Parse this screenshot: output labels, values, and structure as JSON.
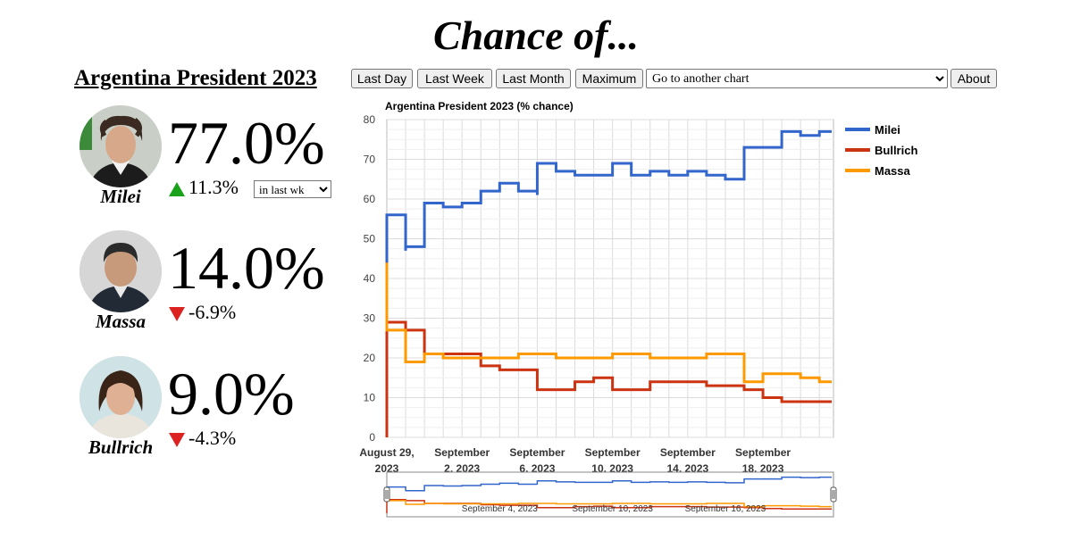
{
  "site": {
    "title": "Chance of..."
  },
  "page": {
    "title": "Argentina President 2023"
  },
  "toolbar": {
    "last_day": "Last Day",
    "last_week": "Last Week",
    "last_month": "Last Month",
    "maximum": "Maximum",
    "chart_select": "Go to another chart",
    "about": "About"
  },
  "candidates": [
    {
      "name": "Milei",
      "chance": "77.0%",
      "change": "11.3%",
      "direction": "up",
      "period": "in last wk"
    },
    {
      "name": "Massa",
      "chance": "14.0%",
      "change": "-6.9%",
      "direction": "down"
    },
    {
      "name": "Bullrich",
      "chance": "9.0%",
      "change": "-4.3%",
      "direction": "down"
    }
  ],
  "colors": {
    "up": "#1aa31a",
    "down": "#dd2222",
    "milei": "#3366cc",
    "bullrich": "#cc3311",
    "massa": "#ff9900"
  },
  "chart_data": {
    "type": "line",
    "title": "Argentina President 2023 (% chance)",
    "ylim": [
      0,
      80
    ],
    "yticks": [
      0,
      10,
      20,
      30,
      40,
      50,
      60,
      70,
      80
    ],
    "xlim": [
      "2023-08-29",
      "2023-09-21"
    ],
    "xticks": [
      {
        "date": "2023-08-29",
        "line1": "August 29,",
        "line2": "2023"
      },
      {
        "date": "2023-09-02",
        "line1": "September",
        "line2": "2, 2023"
      },
      {
        "date": "2023-09-06",
        "line1": "September",
        "line2": "6, 2023"
      },
      {
        "date": "2023-09-10",
        "line1": "September",
        "line2": "10, 2023"
      },
      {
        "date": "2023-09-14",
        "line1": "September",
        "line2": "14, 2023"
      },
      {
        "date": "2023-09-18",
        "line1": "September",
        "line2": "18, 2023"
      }
    ],
    "grid": true,
    "legend_position": "right",
    "series": [
      {
        "name": "Milei",
        "color": "#3366cc",
        "x": [
          "2023-08-29",
          "2023-08-29",
          "2023-08-30",
          "2023-08-30",
          "2023-08-31",
          "2023-09-01",
          "2023-09-02",
          "2023-09-03",
          "2023-09-04",
          "2023-09-05",
          "2023-09-06",
          "2023-09-06",
          "2023-09-07",
          "2023-09-08",
          "2023-09-09",
          "2023-09-10",
          "2023-09-11",
          "2023-09-12",
          "2023-09-13",
          "2023-09-14",
          "2023-09-15",
          "2023-09-16",
          "2023-09-17",
          "2023-09-18",
          "2023-09-19",
          "2023-09-20",
          "2023-09-21"
        ],
        "values": [
          42,
          56,
          47,
          48,
          59,
          58,
          59,
          62,
          64,
          62,
          61,
          69,
          67,
          66,
          66,
          69,
          66,
          67,
          66,
          67,
          66,
          65,
          73,
          73,
          77,
          76,
          77
        ]
      },
      {
        "name": "Bullrich",
        "color": "#cc3311",
        "x": [
          "2023-08-29",
          "2023-08-29",
          "2023-08-30",
          "2023-08-31",
          "2023-09-01",
          "2023-09-02",
          "2023-09-03",
          "2023-09-04",
          "2023-09-05",
          "2023-09-06",
          "2023-09-07",
          "2023-09-08",
          "2023-09-09",
          "2023-09-10",
          "2023-09-11",
          "2023-09-12",
          "2023-09-13",
          "2023-09-14",
          "2023-09-15",
          "2023-09-16",
          "2023-09-17",
          "2023-09-18",
          "2023-09-19",
          "2023-09-20",
          "2023-09-21"
        ],
        "values": [
          0,
          29,
          27,
          21,
          21,
          21,
          18,
          17,
          17,
          12,
          12,
          14,
          15,
          12,
          12,
          14,
          14,
          14,
          13,
          13,
          12,
          10,
          9,
          9,
          9
        ]
      },
      {
        "name": "Massa",
        "color": "#ff9900",
        "x": [
          "2023-08-29",
          "2023-08-29",
          "2023-08-30",
          "2023-08-30",
          "2023-08-31",
          "2023-09-01",
          "2023-09-02",
          "2023-09-03",
          "2023-09-04",
          "2023-09-05",
          "2023-09-06",
          "2023-09-07",
          "2023-09-08",
          "2023-09-09",
          "2023-09-10",
          "2023-09-11",
          "2023-09-12",
          "2023-09-13",
          "2023-09-14",
          "2023-09-15",
          "2023-09-16",
          "2023-09-17",
          "2023-09-18",
          "2023-09-19",
          "2023-09-20",
          "2023-09-21"
        ],
        "values": [
          44,
          27,
          27,
          19,
          21,
          20,
          20,
          20,
          20,
          21,
          21,
          20,
          20,
          20,
          21,
          21,
          20,
          20,
          20,
          21,
          21,
          14,
          16,
          16,
          15,
          14
        ]
      }
    ],
    "navigator": {
      "labels": [
        {
          "date": "2023-09-04",
          "text": "September 4, 2023"
        },
        {
          "date": "2023-09-10",
          "text": "September 10, 2023"
        },
        {
          "date": "2023-09-16",
          "text": "September 16, 2023"
        }
      ]
    }
  }
}
